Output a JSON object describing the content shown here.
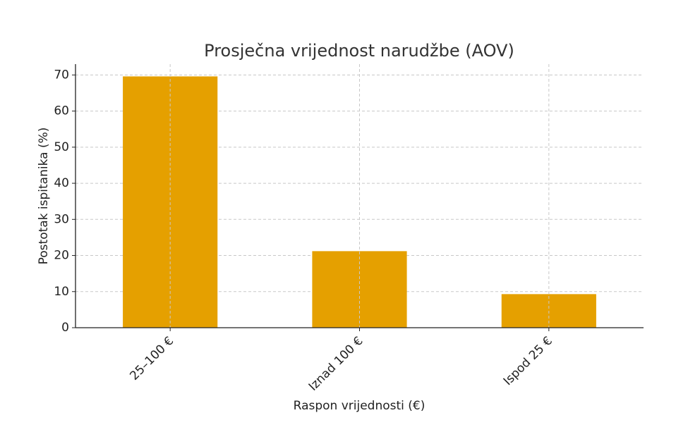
{
  "chart_data": {
    "type": "bar",
    "title": "Prosječna vrijednost narudžbe (AOV)",
    "x_label": "Raspon vrijednosti (€)",
    "y_label": "Postotak ispitanika (%)",
    "categories": [
      "25–100 €",
      "Iznad 100 €",
      "Ispod 25 €"
    ],
    "values": [
      69.6,
      21.2,
      9.3
    ],
    "color": "#e5a000",
    "ylim": [
      0,
      73
    ],
    "yticks": [
      0,
      10,
      20,
      30,
      40,
      50,
      60,
      70
    ],
    "grid": true
  }
}
